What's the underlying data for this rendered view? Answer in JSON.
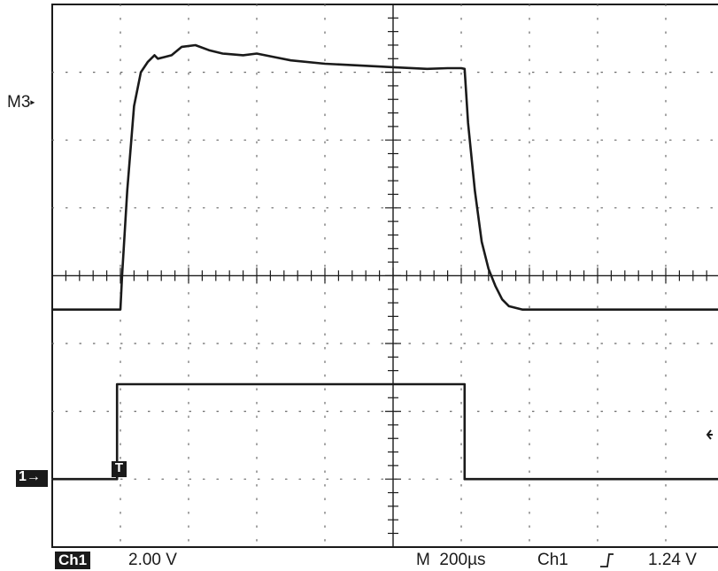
{
  "chart_data": {
    "type": "line",
    "title": "",
    "xlabel": "",
    "ylabel": "",
    "xlim": [
      0,
      2000
    ],
    "ylim": [
      -8,
      8
    ],
    "x_unit": "µs",
    "grid": true,
    "series": [
      {
        "x": [
          0,
          200,
          205,
          220,
          240,
          260,
          280,
          300,
          310,
          330,
          350,
          380,
          420,
          460,
          500,
          560,
          600,
          650,
          700,
          800,
          900,
          1000,
          1100,
          1160,
          1200,
          1210,
          1220,
          1240,
          1260,
          1280,
          1300,
          1320,
          1340,
          1380,
          1420,
          1500,
          1600,
          1700,
          1800,
          1990
        ],
        "y": [
          -1.0,
          -1.0,
          0.0,
          2.5,
          5.0,
          6.0,
          6.3,
          6.5,
          6.4,
          6.45,
          6.5,
          6.75,
          6.8,
          6.65,
          6.55,
          6.5,
          6.55,
          6.45,
          6.35,
          6.25,
          6.2,
          6.15,
          6.1,
          6.12,
          6.12,
          6.1,
          4.5,
          2.5,
          1.0,
          0.2,
          -0.3,
          -0.7,
          -0.9,
          -1.0,
          -1.0,
          -1.0,
          -1.0,
          -1.0,
          -1.0,
          -1.0
        ]
      },
      {
        "x": [
          0,
          190,
          190,
          1210,
          1210,
          1990
        ],
        "y": [
          -6.0,
          -6.0,
          -3.2,
          -3.2,
          -6.0,
          -6.0
        ]
      }
    ]
  },
  "markers": {
    "m3": "M3",
    "ch1_ground": "1",
    "trigger": "T"
  },
  "status_bar": {
    "channel": "Ch1",
    "volts_per_div": "2.00 V",
    "timebase": "M  200µs",
    "trigger_source": "Ch1",
    "trigger_slope_icon": "rising-edge-icon",
    "trigger_level": "1.24 V"
  }
}
